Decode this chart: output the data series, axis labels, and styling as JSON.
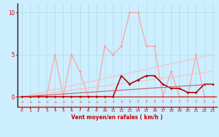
{
  "xlabel": "Vent moyen/en rafales ( km/h )",
  "xlim": [
    -0.5,
    23.5
  ],
  "ylim": [
    -1.2,
    11
  ],
  "yticks": [
    0,
    5,
    10
  ],
  "xticks": [
    0,
    1,
    2,
    3,
    4,
    5,
    6,
    7,
    8,
    9,
    10,
    11,
    12,
    13,
    14,
    15,
    16,
    17,
    18,
    19,
    20,
    21,
    22,
    23
  ],
  "bg_color": "#cceeff",
  "grid_color": "#aadddd",
  "series_light_pink": {
    "x": [
      0,
      1,
      2,
      3,
      4,
      5,
      6,
      7,
      8,
      9,
      10,
      11,
      12,
      13,
      14,
      15,
      16,
      17,
      18,
      19,
      20,
      21,
      22,
      23
    ],
    "y": [
      0,
      0,
      0,
      0,
      5,
      0,
      5,
      3,
      0,
      0,
      6,
      5,
      6,
      10,
      10,
      6,
      6,
      0,
      3,
      0,
      0,
      5,
      0,
      0
    ],
    "color": "#ff9999",
    "lw": 0.8,
    "marker": "D",
    "ms": 2.0
  },
  "series_trend_hi": {
    "x": [
      0,
      23
    ],
    "y": [
      0.0,
      5.0
    ],
    "color": "#ffbbbb",
    "lw": 0.8
  },
  "series_trend_lo": {
    "x": [
      0,
      23
    ],
    "y": [
      0.0,
      3.0
    ],
    "color": "#ffbbbb",
    "lw": 0.8
  },
  "series_dark_red": {
    "x": [
      0,
      1,
      2,
      3,
      4,
      5,
      6,
      7,
      8,
      9,
      10,
      11,
      12,
      13,
      14,
      15,
      16,
      17,
      18,
      19,
      20,
      21,
      22,
      23
    ],
    "y": [
      0,
      0,
      0,
      0,
      0,
      0,
      0,
      0,
      0,
      0,
      0,
      0,
      2.5,
      1.5,
      2.0,
      2.5,
      2.5,
      1.5,
      1.0,
      1.0,
      0.5,
      0.5,
      1.5,
      1.5
    ],
    "color": "#aa0000",
    "lw": 1.2,
    "marker": "D",
    "ms": 2.0
  },
  "series_trend_dark": {
    "x": [
      0,
      23
    ],
    "y": [
      0.0,
      1.5
    ],
    "color": "#cc5555",
    "lw": 0.8
  },
  "arrows_x": [
    0,
    1,
    2,
    3,
    4,
    5,
    6,
    7,
    8,
    9,
    10,
    11,
    12,
    13,
    14,
    15,
    16,
    17,
    18,
    19,
    20,
    21,
    22,
    23
  ],
  "arrow_angles_deg": [
    190,
    190,
    190,
    190,
    190,
    190,
    190,
    190,
    190,
    190,
    200,
    215,
    220,
    235,
    245,
    255,
    255,
    258,
    258,
    258,
    265,
    258,
    255,
    190
  ]
}
